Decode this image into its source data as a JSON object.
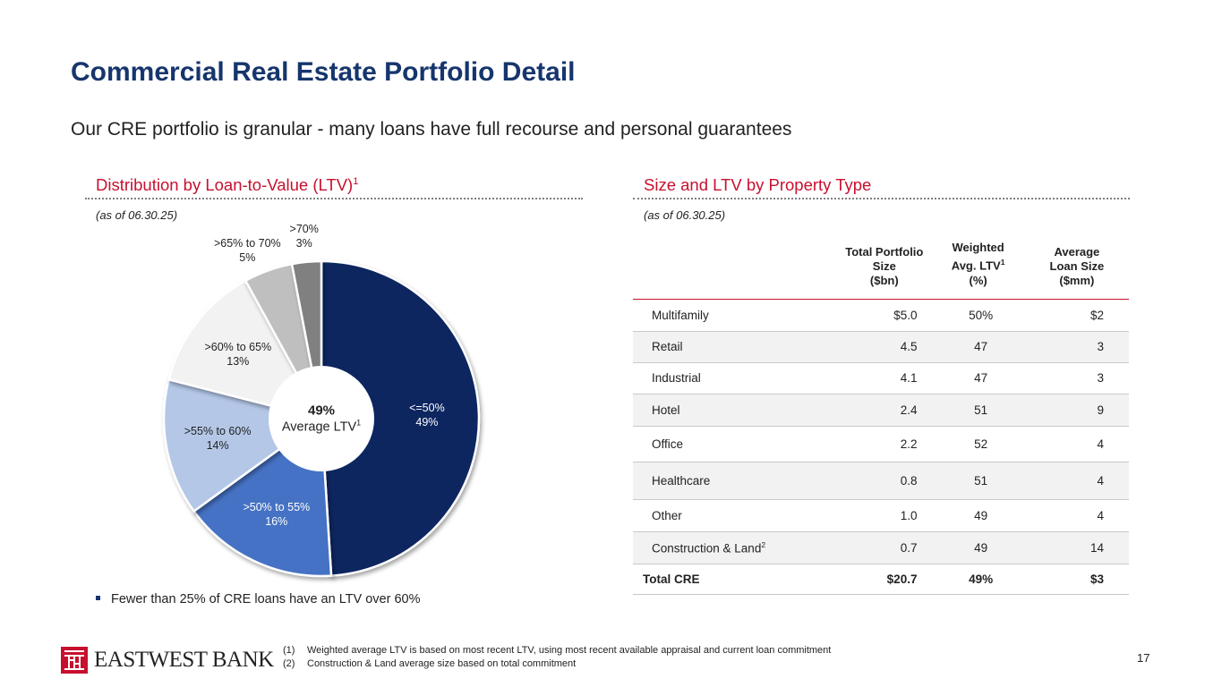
{
  "title": "Commercial Real Estate Portfolio Detail",
  "subtitle": "Our CRE portfolio is granular - many loans have full recourse and personal guarantees",
  "left": {
    "heading": "Distribution by Loan-to-Value (LTV)",
    "heading_sup": "1",
    "as_of": "(as of 06.30.25)",
    "center_pct": "49%",
    "center_label": "Average LTV",
    "center_sup": "1",
    "bullet": "Fewer than 25% of CRE loans have an LTV over 60%"
  },
  "chart_data": {
    "type": "pie",
    "slices": [
      {
        "label": "<=50%",
        "value_label": "49%",
        "value": 49,
        "color": "#0f2660"
      },
      {
        "label": ">50% to 55%",
        "value_label": "16%",
        "value": 16,
        "color": "#4472c4"
      },
      {
        "label": ">55% to 60%",
        "value_label": "14%",
        "value": 14,
        "color": "#b4c7e7"
      },
      {
        "label": ">60% to 65%",
        "value_label": "13%",
        "value": 13,
        "color": "#f2f2f2"
      },
      {
        "label": ">65% to 70%",
        "value_label": "5%",
        "value": 5,
        "color": "#bfbfbf"
      },
      {
        "label": ">70%",
        "value_label": "3%",
        "value": 3,
        "color": "#808080"
      }
    ]
  },
  "right": {
    "heading": "Size and LTV by Property Type",
    "as_of": "(as of 06.30.25)",
    "columns": {
      "col1": [
        "Total Portfolio",
        "Size",
        "($bn)"
      ],
      "col2_line1": "Weighted",
      "col2_line2": "Avg. LTV",
      "col2_sup": "1",
      "col2_line3": "(%)",
      "col3": [
        "Average",
        "Loan Size",
        "($mm)"
      ]
    },
    "rows": [
      {
        "name": "Multifamily",
        "size": "$5.0",
        "ltv": "50%",
        "avg": "$2"
      },
      {
        "name": "Retail",
        "size": "4.5",
        "ltv": "47",
        "avg": "3"
      },
      {
        "name": "Industrial",
        "size": "4.1",
        "ltv": "47",
        "avg": "3"
      },
      {
        "name": "Hotel",
        "size": "2.4",
        "ltv": "51",
        "avg": "9"
      },
      {
        "name": "Office",
        "size": "2.2",
        "ltv": "52",
        "avg": "4"
      },
      {
        "name": "Healthcare",
        "size": "0.8",
        "ltv": "51",
        "avg": "4"
      },
      {
        "name": "Other",
        "size": "1.0",
        "ltv": "49",
        "avg": "4"
      },
      {
        "name": "Construction & Land",
        "name_sup": "2",
        "size": "0.7",
        "ltv": "49",
        "avg": "14"
      }
    ],
    "total": {
      "name": "Total CRE",
      "size": "$20.7",
      "ltv": "49%",
      "avg": "$3"
    }
  },
  "footer": {
    "logo_text": "EASTWEST BANK",
    "notes": [
      {
        "num": "(1)",
        "text": "Weighted average LTV is based on most recent LTV, using most recent available appraisal and current loan commitment"
      },
      {
        "num": "(2)",
        "text": "Construction & Land average size based on total commitment"
      }
    ],
    "page_number": "17"
  },
  "colors": {
    "navy": "#16356d",
    "red": "#c8102e"
  }
}
